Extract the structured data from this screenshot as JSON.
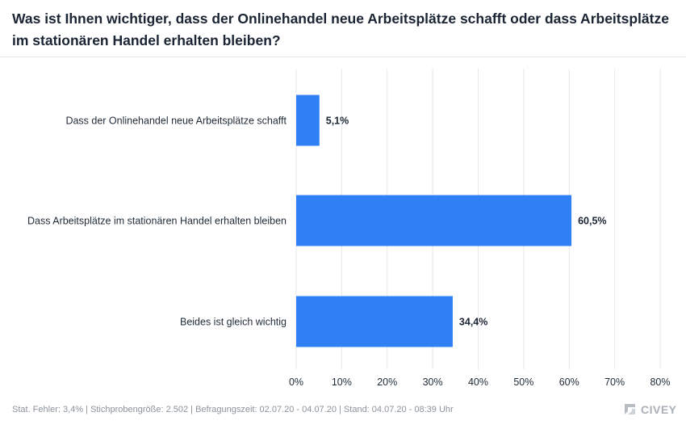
{
  "title": "Was ist Ihnen wichtiger, dass der Onlinehandel neue Arbeitsplätze schafft oder dass Arbeitsplätze im stationären Handel erhalten bleiben?",
  "footer": "Stat. Fehler: 3,4% | Stichprobengröße: 2.502 | Befragungszeit: 02.07.20 - 04.07.20 | Stand: 04.07.20 - 08:39 Uhr",
  "logo_text": "CIVEY",
  "colors": {
    "bar": "#2f7ff5",
    "grid": "#e6e8eb",
    "text": "#1f2b37",
    "value_label": "#1a2433"
  },
  "chart_data": {
    "type": "bar",
    "orientation": "horizontal",
    "categories": [
      "Dass der Onlinehandel neue Arbeitsplätze schafft",
      "Dass Arbeitsplätze im stationären Handel erhalten bleiben",
      "Beides ist gleich wichtig"
    ],
    "values": [
      5.1,
      60.5,
      34.4
    ],
    "value_labels": [
      "5,1%",
      "60,5%",
      "34,4%"
    ],
    "xlim": [
      0,
      80
    ],
    "xticks": [
      0,
      10,
      20,
      30,
      40,
      50,
      60,
      70,
      80
    ],
    "xtick_labels": [
      "0%",
      "10%",
      "20%",
      "30%",
      "40%",
      "50%",
      "60%",
      "70%",
      "80%"
    ],
    "grid": true
  }
}
